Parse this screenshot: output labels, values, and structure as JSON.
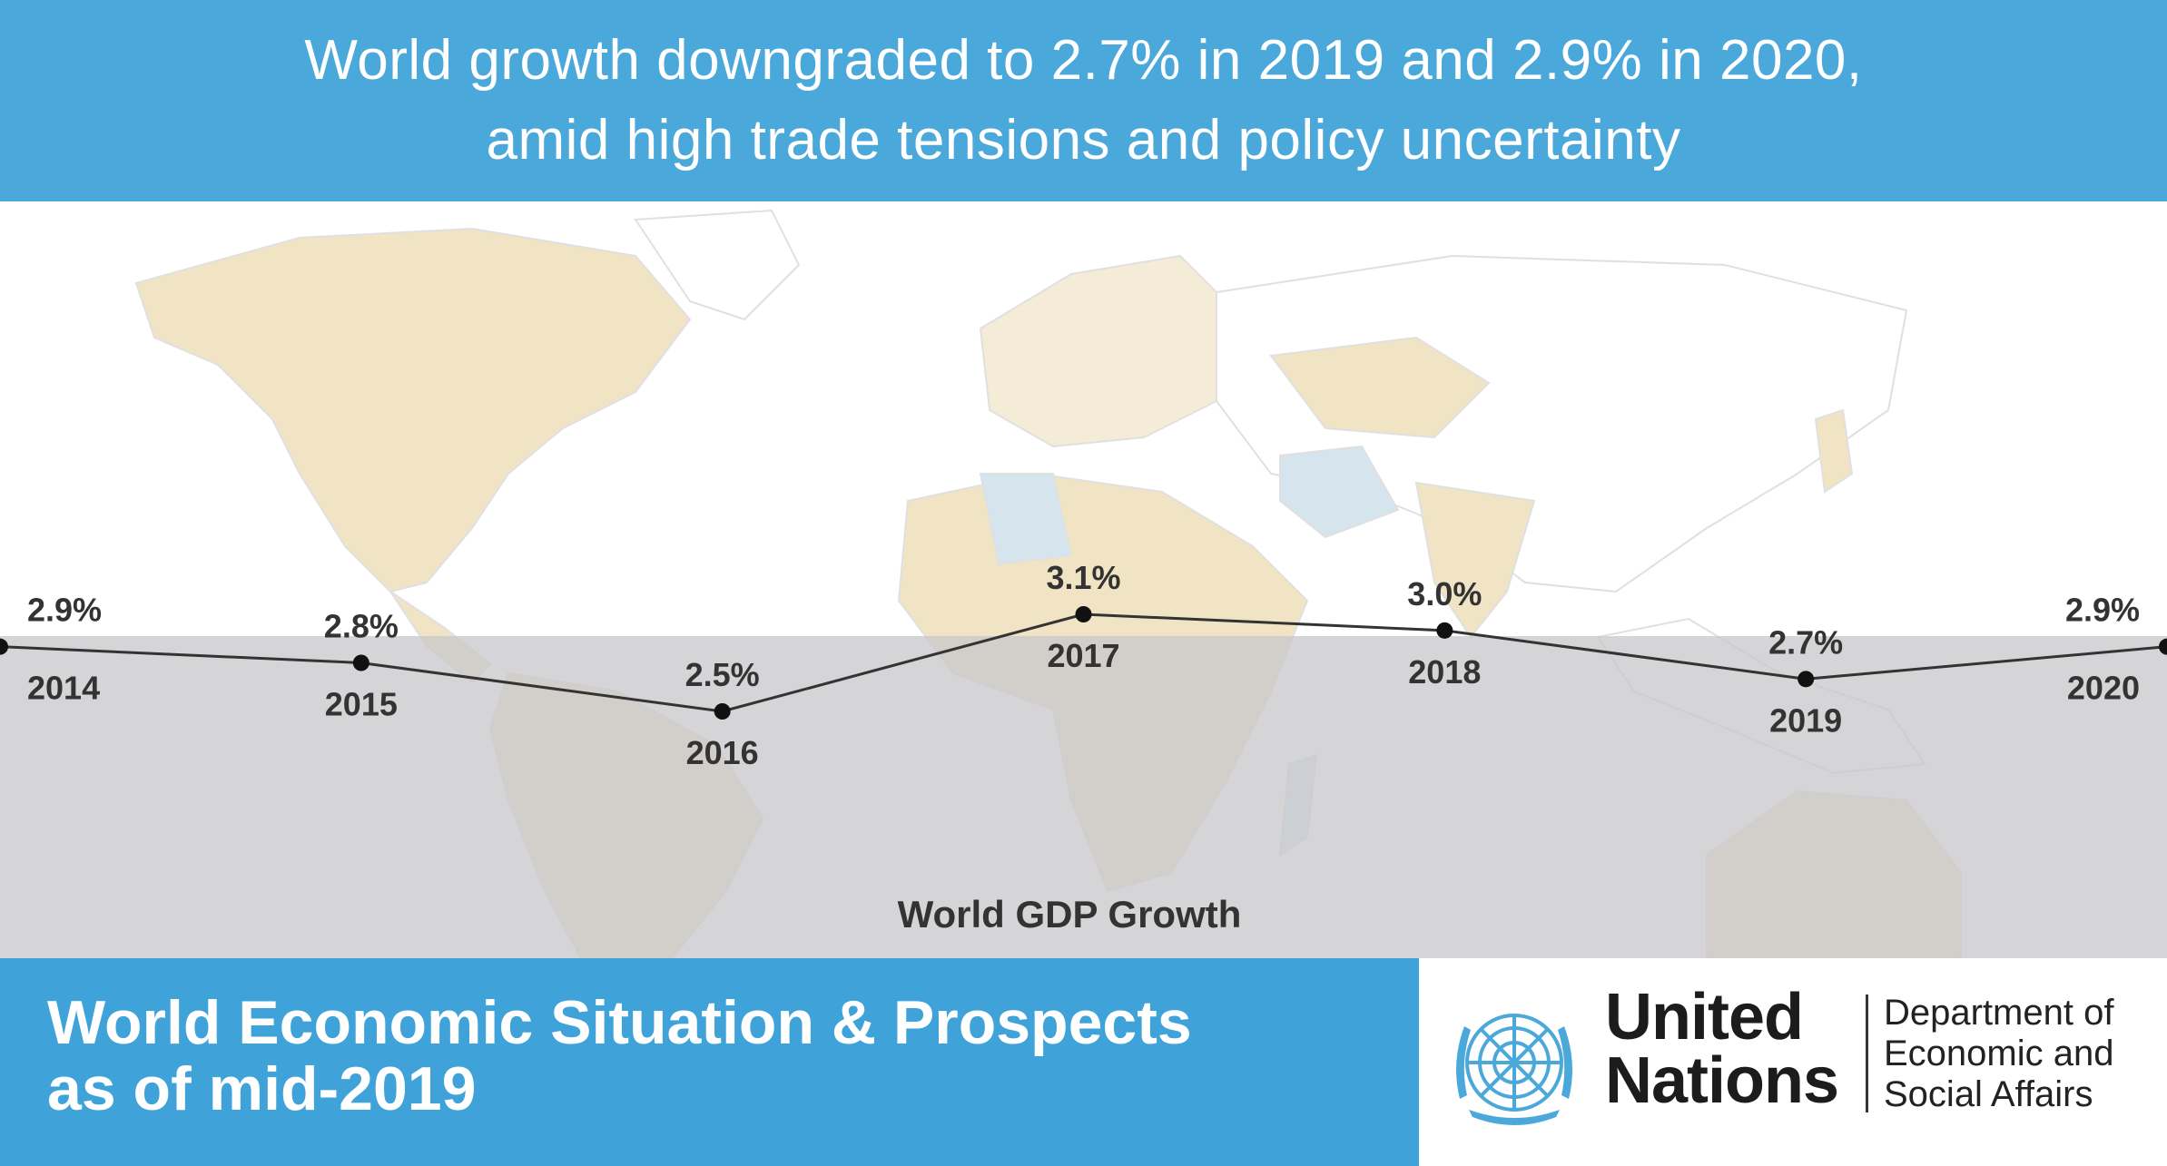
{
  "header": {
    "line1": "World growth downgraded to 2.7% in 2019 and 2.9% in 2020,",
    "line2": "amid high trade tensions and policy uncertainty"
  },
  "chart_data": {
    "type": "line",
    "title": "World GDP Growth",
    "categories": [
      "2014",
      "2015",
      "2016",
      "2017",
      "2018",
      "2019",
      "2020"
    ],
    "values": [
      2.9,
      2.8,
      2.5,
      3.1,
      3.0,
      2.7,
      2.9
    ],
    "value_labels": [
      "2.9%",
      "2.8%",
      "2.5%",
      "3.1%",
      "3.0%",
      "2.7%",
      "2.9%"
    ],
    "grid": false,
    "legend": "none"
  },
  "footer": {
    "title_line1": "World Economic Situation & Prospects",
    "title_line2": "as of mid-2019",
    "org_line1": "United",
    "org_line2": "Nations",
    "dept_line1": "Department of",
    "dept_line2": "Economic and",
    "dept_line3": "Social Affairs"
  },
  "colors": {
    "header_bg": "#4aa8da",
    "footer_bg": "#3fa2d8",
    "band": "#c9c9cc",
    "land_beige": "#f0e4c4",
    "land_blue": "#d6e4ee",
    "line": "#333333",
    "marker": "#111111"
  },
  "icons": [
    "world-map-background",
    "un-emblem-icon"
  ]
}
